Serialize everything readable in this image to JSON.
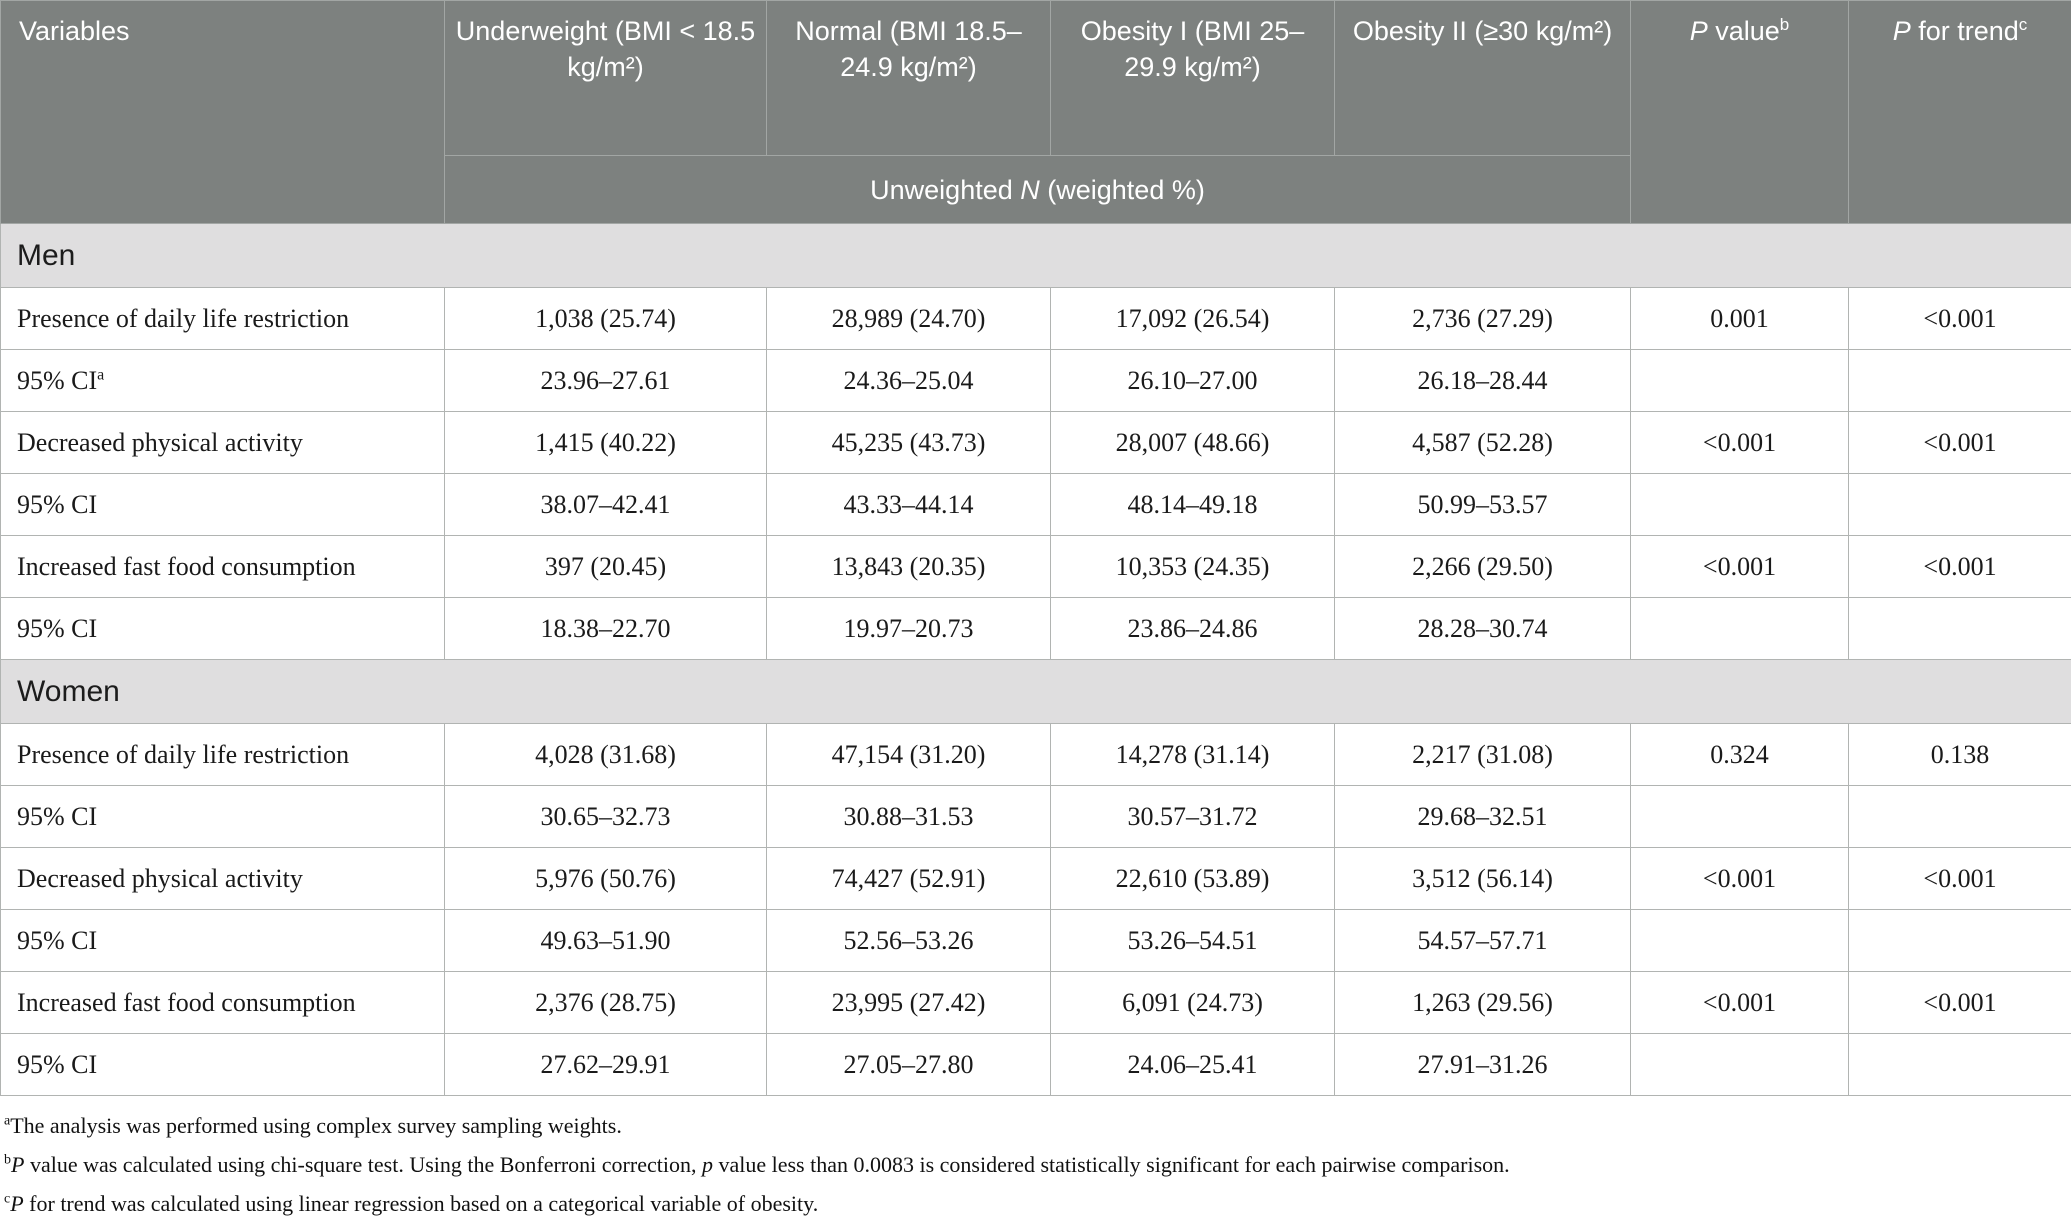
{
  "table": {
    "header": {
      "variables_label": "Variables",
      "group_columns": [
        "Underweight (BMI < 18.5 kg/m²)",
        "Normal (BMI 18.5–24.9 kg/m²)",
        "Obesity I (BMI 25–29.9 kg/m²)",
        "Obesity II (≥30 kg/m²)"
      ],
      "p_value": {
        "lead": "P",
        "rest": " value",
        "sup": "b"
      },
      "p_trend": {
        "lead": "P",
        "rest": " for trend",
        "sup": "c"
      },
      "subheader": {
        "pre": "Unweighted ",
        "italic": "N",
        "post": " (weighted %)"
      }
    },
    "sections": [
      {
        "title": "Men",
        "rows": [
          {
            "label": "Presence of daily life restriction",
            "label_sup": "",
            "values": [
              "1,038 (25.74)",
              "28,989 (24.70)",
              "17,092 (26.54)",
              "2,736 (27.29)",
              "0.001",
              "<0.001"
            ]
          },
          {
            "label": "95% CI",
            "label_sup": "a",
            "values": [
              "23.96–27.61",
              "24.36–25.04",
              "26.10–27.00",
              "26.18–28.44",
              "",
              ""
            ]
          },
          {
            "label": "Decreased physical activity",
            "label_sup": "",
            "values": [
              "1,415 (40.22)",
              "45,235 (43.73)",
              "28,007 (48.66)",
              "4,587 (52.28)",
              "<0.001",
              "<0.001"
            ]
          },
          {
            "label": "95% CI",
            "label_sup": "",
            "values": [
              "38.07–42.41",
              "43.33–44.14",
              "48.14–49.18",
              "50.99–53.57",
              "",
              ""
            ]
          },
          {
            "label": "Increased fast food consumption",
            "label_sup": "",
            "values": [
              "397 (20.45)",
              "13,843 (20.35)",
              "10,353 (24.35)",
              "2,266 (29.50)",
              "<0.001",
              "<0.001"
            ]
          },
          {
            "label": "95% CI",
            "label_sup": "",
            "values": [
              "18.38–22.70",
              "19.97–20.73",
              "23.86–24.86",
              "28.28–30.74",
              "",
              ""
            ]
          }
        ]
      },
      {
        "title": "Women",
        "rows": [
          {
            "label": "Presence of daily life restriction",
            "label_sup": "",
            "values": [
              "4,028 (31.68)",
              "47,154 (31.20)",
              "14,278 (31.14)",
              "2,217 (31.08)",
              "0.324",
              "0.138"
            ]
          },
          {
            "label": "95% CI",
            "label_sup": "",
            "values": [
              "30.65–32.73",
              "30.88–31.53",
              "30.57–31.72",
              "29.68–32.51",
              "",
              ""
            ]
          },
          {
            "label": "Decreased physical activity",
            "label_sup": "",
            "values": [
              "5,976 (50.76)",
              "74,427 (52.91)",
              "22,610 (53.89)",
              "3,512 (56.14)",
              "<0.001",
              "<0.001"
            ]
          },
          {
            "label": "95% CI",
            "label_sup": "",
            "values": [
              "49.63–51.90",
              "52.56–53.26",
              "53.26–54.51",
              "54.57–57.71",
              "",
              ""
            ]
          },
          {
            "label": "Increased fast food consumption",
            "label_sup": "",
            "values": [
              "2,376 (28.75)",
              "23,995 (27.42)",
              "6,091 (24.73)",
              "1,263 (29.56)",
              "<0.001",
              "<0.001"
            ]
          },
          {
            "label": "95% CI",
            "label_sup": "",
            "values": [
              "27.62–29.91",
              "27.05–27.80",
              "24.06–25.41",
              "27.91–31.26",
              "",
              ""
            ]
          }
        ]
      }
    ]
  },
  "footnotes": [
    {
      "sup": "a",
      "segments": [
        {
          "t": "The analysis was performed using complex survey sampling weights."
        }
      ]
    },
    {
      "sup": "b",
      "segments": [
        {
          "t": "P",
          "i": true
        },
        {
          "t": " value was calculated using chi-square test. Using the Bonferroni correction, "
        },
        {
          "t": "p",
          "i": true
        },
        {
          "t": " value less than 0.0083 is considered statistically significant for each pairwise comparison."
        }
      ]
    },
    {
      "sup": "c",
      "segments": [
        {
          "t": "P",
          "i": true
        },
        {
          "t": " for trend was calculated using linear regression based on a categorical variable of obesity."
        }
      ]
    }
  ],
  "colors": {
    "header_bg": "#7d817f",
    "section_bg": "#dfdedf",
    "body_border": "#b1b4b2",
    "header_border": "#a2a6a4",
    "text": "#1a1a1a"
  }
}
